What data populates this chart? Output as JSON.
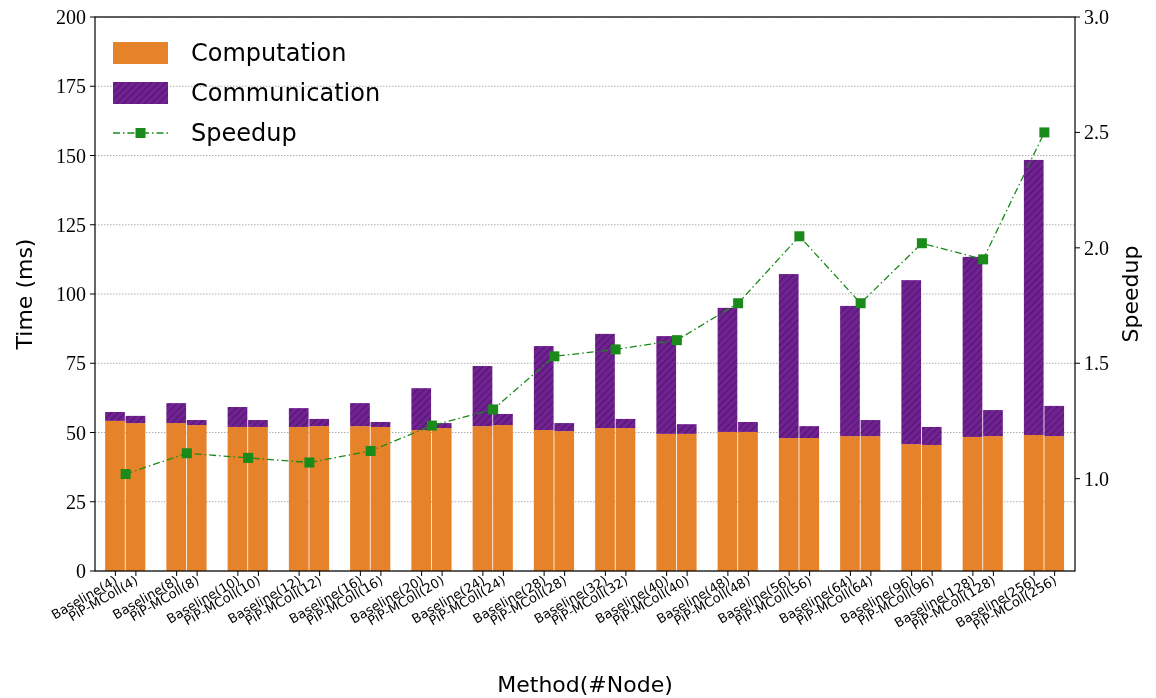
{
  "chart_data": {
    "type": "bar",
    "stacked": true,
    "xlabel": "Method(#Node)",
    "ylabel": "Time (ms)",
    "y2label": "Speedup",
    "categories": [
      "Baseline(4)",
      "PiP-MColl(4)",
      "Baseline(8)",
      "PiP-MColl(8)",
      "Baseline(10)",
      "PiP-MColl(10)",
      "Baseline(12)",
      "PiP-MColl(12)",
      "Baseline(16)",
      "PiP-MColl(16)",
      "Baseline(20)",
      "PiP-MColl(20)",
      "Baseline(24)",
      "PiP-MColl(24)",
      "Baseline(28)",
      "PiP-MColl(28)",
      "Baseline(32)",
      "PiP-MColl(32)",
      "Baseline(40)",
      "PiP-MColl(40)",
      "Baseline(48)",
      "PiP-MColl(48)",
      "Baseline(56)",
      "PiP-MColl(56)",
      "Baseline(64)",
      "PiP-MColl(64)",
      "Baseline(96)",
      "PiP-MColl(96)",
      "Baseline(128)",
      "PiP-MColl(128)",
      "Baseline(256)",
      "PiP-MColl(256)"
    ],
    "series": [
      {
        "name": "Computation",
        "color": "#e6832a",
        "values": [
          54.2,
          53.4,
          53.4,
          52.7,
          52,
          52,
          52,
          52.3,
          52.3,
          52,
          50.9,
          51.6,
          52.3,
          52.7,
          50.9,
          50.5,
          51.6,
          51.6,
          49.5,
          49.5,
          50.2,
          50.2,
          48,
          48,
          48.7,
          48.7,
          45.8,
          45.5,
          48.4,
          48.7,
          49.1,
          48.7
        ]
      },
      {
        "name": "Communication",
        "color": "#6f2290",
        "values": [
          3.2,
          2.6,
          7.2,
          1.8,
          7.2,
          2.5,
          6.8,
          2.6,
          8.3,
          1.8,
          15.1,
          1.8,
          21.7,
          4,
          30.3,
          2.9,
          34,
          3.3,
          35.3,
          3.5,
          44.8,
          3.6,
          59.2,
          4.3,
          47,
          5.8,
          59.2,
          6.5,
          65,
          9.4,
          99.3,
          10.9
        ]
      },
      {
        "name": "Speedup",
        "type": "line",
        "axis": "y2",
        "color": "#1a8a1a",
        "marker": "square",
        "line_style": "dashed",
        "x": [
          "PiP-MColl(4)",
          "PiP-MColl(8)",
          "PiP-MColl(10)",
          "PiP-MColl(12)",
          "PiP-MColl(16)",
          "PiP-MColl(20)",
          "PiP-MColl(24)",
          "PiP-MColl(28)",
          "PiP-MColl(32)",
          "PiP-MColl(40)",
          "PiP-MColl(48)",
          "PiP-MColl(56)",
          "PiP-MColl(64)",
          "PiP-MColl(96)",
          "PiP-MColl(128)",
          "PiP-MColl(256)"
        ],
        "values": [
          1.02,
          1.11,
          1.09,
          1.07,
          1.12,
          1.23,
          1.3,
          1.53,
          1.56,
          1.6,
          1.76,
          2.05,
          1.76,
          2.02,
          1.95,
          2.5
        ]
      }
    ],
    "ylim": [
      0,
      200
    ],
    "yticks": [
      0,
      25,
      50,
      75,
      100,
      125,
      150,
      175,
      200
    ],
    "y2lim": [
      0.6,
      3.0
    ],
    "y2ticks": [
      {
        "value": 1,
        "label": "1.0"
      },
      {
        "value": 1.5,
        "label": "1.5"
      },
      {
        "value": 2,
        "label": "2.0"
      },
      {
        "value": 2.5,
        "label": "2.5"
      },
      {
        "value": 3,
        "label": "3.0"
      }
    ],
    "grid": "y",
    "legend": "top left"
  }
}
